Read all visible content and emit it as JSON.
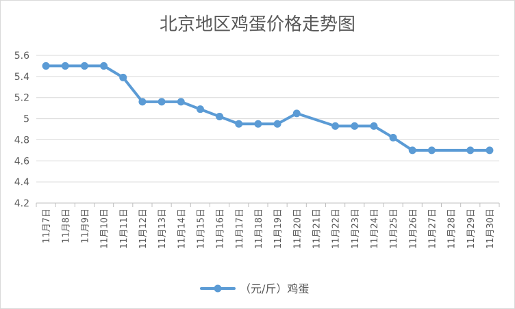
{
  "chart_data": {
    "type": "line",
    "title": "北京地区鸡蛋价格走势图",
    "xlabel": "",
    "ylabel": "",
    "ylim": [
      4.2,
      5.6
    ],
    "yticks": [
      "4.2",
      "4.4",
      "4.6",
      "4.8",
      "5",
      "5.2",
      "5.4",
      "5.6"
    ],
    "grid": true,
    "legend": "bottom",
    "categories": [
      "11月7日",
      "11月8日",
      "11月9日",
      "11月10日",
      "11月11日",
      "11月12日",
      "11月13日",
      "11月14日",
      "11月15日",
      "11月16日",
      "11月17日",
      "11月18日",
      "11月19日",
      "11月20日",
      "11月21日",
      "11月22日",
      "11月23日",
      "11月24日",
      "11月25日",
      "11月26日",
      "11月27日",
      "11月28日",
      "11月29日",
      "11月30日"
    ],
    "series": [
      {
        "name": "（元/斤）鸡蛋",
        "color": "#5b9bd5",
        "values": [
          5.5,
          5.5,
          5.5,
          5.5,
          5.39,
          5.16,
          5.16,
          5.16,
          5.09,
          5.02,
          4.95,
          4.95,
          4.95,
          5.05,
          null,
          4.93,
          4.93,
          4.93,
          4.82,
          4.7,
          4.7,
          null,
          4.7,
          4.7
        ]
      }
    ]
  }
}
